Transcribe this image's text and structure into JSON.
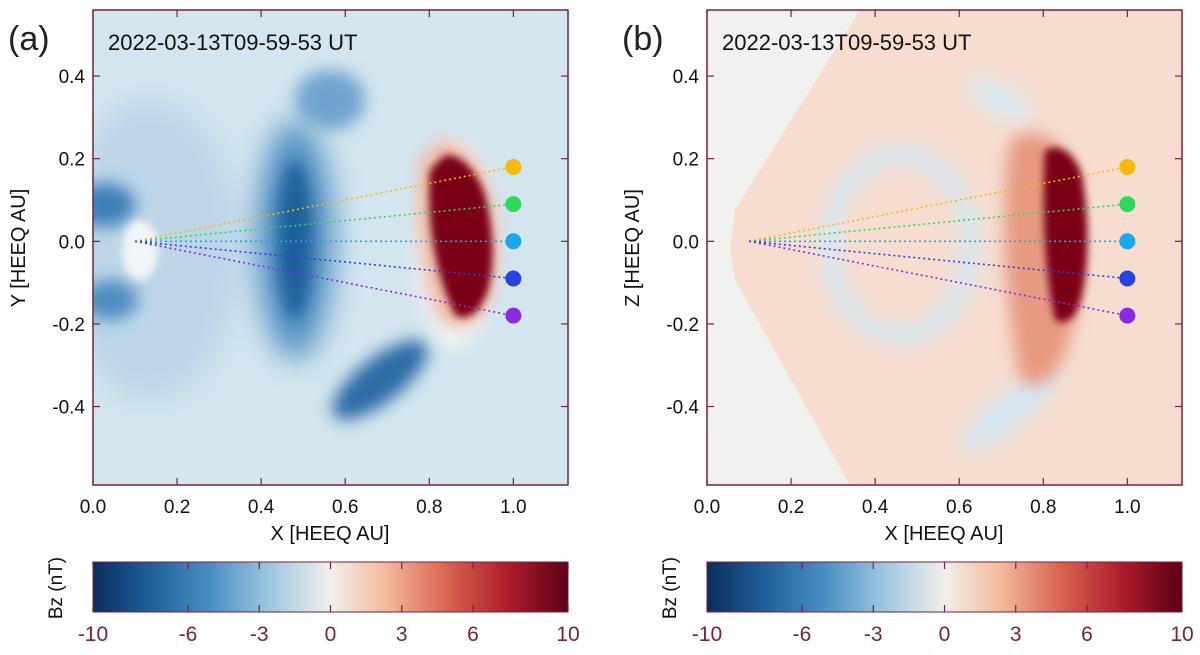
{
  "figure": {
    "colors": {
      "axis": "#7a1f3d",
      "background_field": "#d7e6f0",
      "blue_strong": "#1f5f99",
      "red_strong": "#7a0019"
    }
  },
  "chart_data": [
    {
      "type": "heatmap",
      "panel_label": "(a)",
      "timestamp": "2022-03-13T09-59-53 UT",
      "xlabel": "X [HEEQ AU]",
      "ylabel": "Y [HEEQ AU]",
      "xlim": [
        0.0,
        1.13
      ],
      "ylim": [
        -0.59,
        0.56
      ],
      "xticks": [
        0.0,
        0.2,
        0.4,
        0.6,
        0.8,
        1.0
      ],
      "xtick_labels": [
        "0.0",
        "0.2",
        "0.4",
        "0.6",
        "0.8",
        "1.0"
      ],
      "yticks": [
        -0.4,
        -0.2,
        0.0,
        0.2,
        0.4
      ],
      "ytick_labels": [
        "-0.4",
        "-0.2",
        "0.0",
        "0.2",
        "0.4"
      ],
      "probe_origin": [
        0.1,
        0.0
      ],
      "probes": [
        {
          "name": "probe-1",
          "x": 1.0,
          "y": 0.18,
          "color": "#f5b90f"
        },
        {
          "name": "probe-2",
          "x": 1.0,
          "y": 0.09,
          "color": "#2fd85a"
        },
        {
          "name": "probe-3",
          "x": 1.0,
          "y": 0.0,
          "color": "#1aa7ec"
        },
        {
          "name": "probe-4",
          "x": 1.0,
          "y": -0.09,
          "color": "#2643e0"
        },
        {
          "name": "probe-5",
          "x": 1.0,
          "y": -0.18,
          "color": "#8a2be2"
        }
      ],
      "colorbar": {
        "label": "Bz (nT)",
        "range": [
          -10,
          10
        ],
        "ticks": [
          -10,
          -6,
          -3,
          0,
          3,
          6,
          10
        ],
        "tick_labels": [
          "-10",
          "-6",
          "-3",
          "0",
          "3",
          "6",
          "10"
        ]
      }
    },
    {
      "type": "heatmap",
      "panel_label": "(b)",
      "timestamp": "2022-03-13T09-59-53 UT",
      "xlabel": "X [HEEQ AU]",
      "ylabel": "Z [HEEQ AU]",
      "xlim": [
        0.0,
        1.13
      ],
      "ylim": [
        -0.59,
        0.56
      ],
      "xticks": [
        0.0,
        0.2,
        0.4,
        0.6,
        0.8,
        1.0
      ],
      "xtick_labels": [
        "0.0",
        "0.2",
        "0.4",
        "0.6",
        "0.8",
        "1.0"
      ],
      "yticks": [
        -0.4,
        -0.2,
        0.0,
        0.2,
        0.4
      ],
      "ytick_labels": [
        "-0.4",
        "-0.2",
        "0.0",
        "0.2",
        "0.4"
      ],
      "probe_origin": [
        0.1,
        0.0
      ],
      "probes": [
        {
          "name": "probe-1",
          "x": 1.0,
          "y": 0.18,
          "color": "#f5b90f"
        },
        {
          "name": "probe-2",
          "x": 1.0,
          "y": 0.09,
          "color": "#2fd85a"
        },
        {
          "name": "probe-3",
          "x": 1.0,
          "y": 0.0,
          "color": "#1aa7ec"
        },
        {
          "name": "probe-4",
          "x": 1.0,
          "y": -0.09,
          "color": "#2643e0"
        },
        {
          "name": "probe-5",
          "x": 1.0,
          "y": -0.18,
          "color": "#8a2be2"
        }
      ],
      "colorbar": {
        "label": "Bz (nT)",
        "range": [
          -10,
          10
        ],
        "ticks": [
          -10,
          -6,
          -3,
          0,
          3,
          6,
          10
        ],
        "tick_labels": [
          "-10",
          "-6",
          "-3",
          "0",
          "3",
          "6",
          "10"
        ]
      }
    }
  ]
}
